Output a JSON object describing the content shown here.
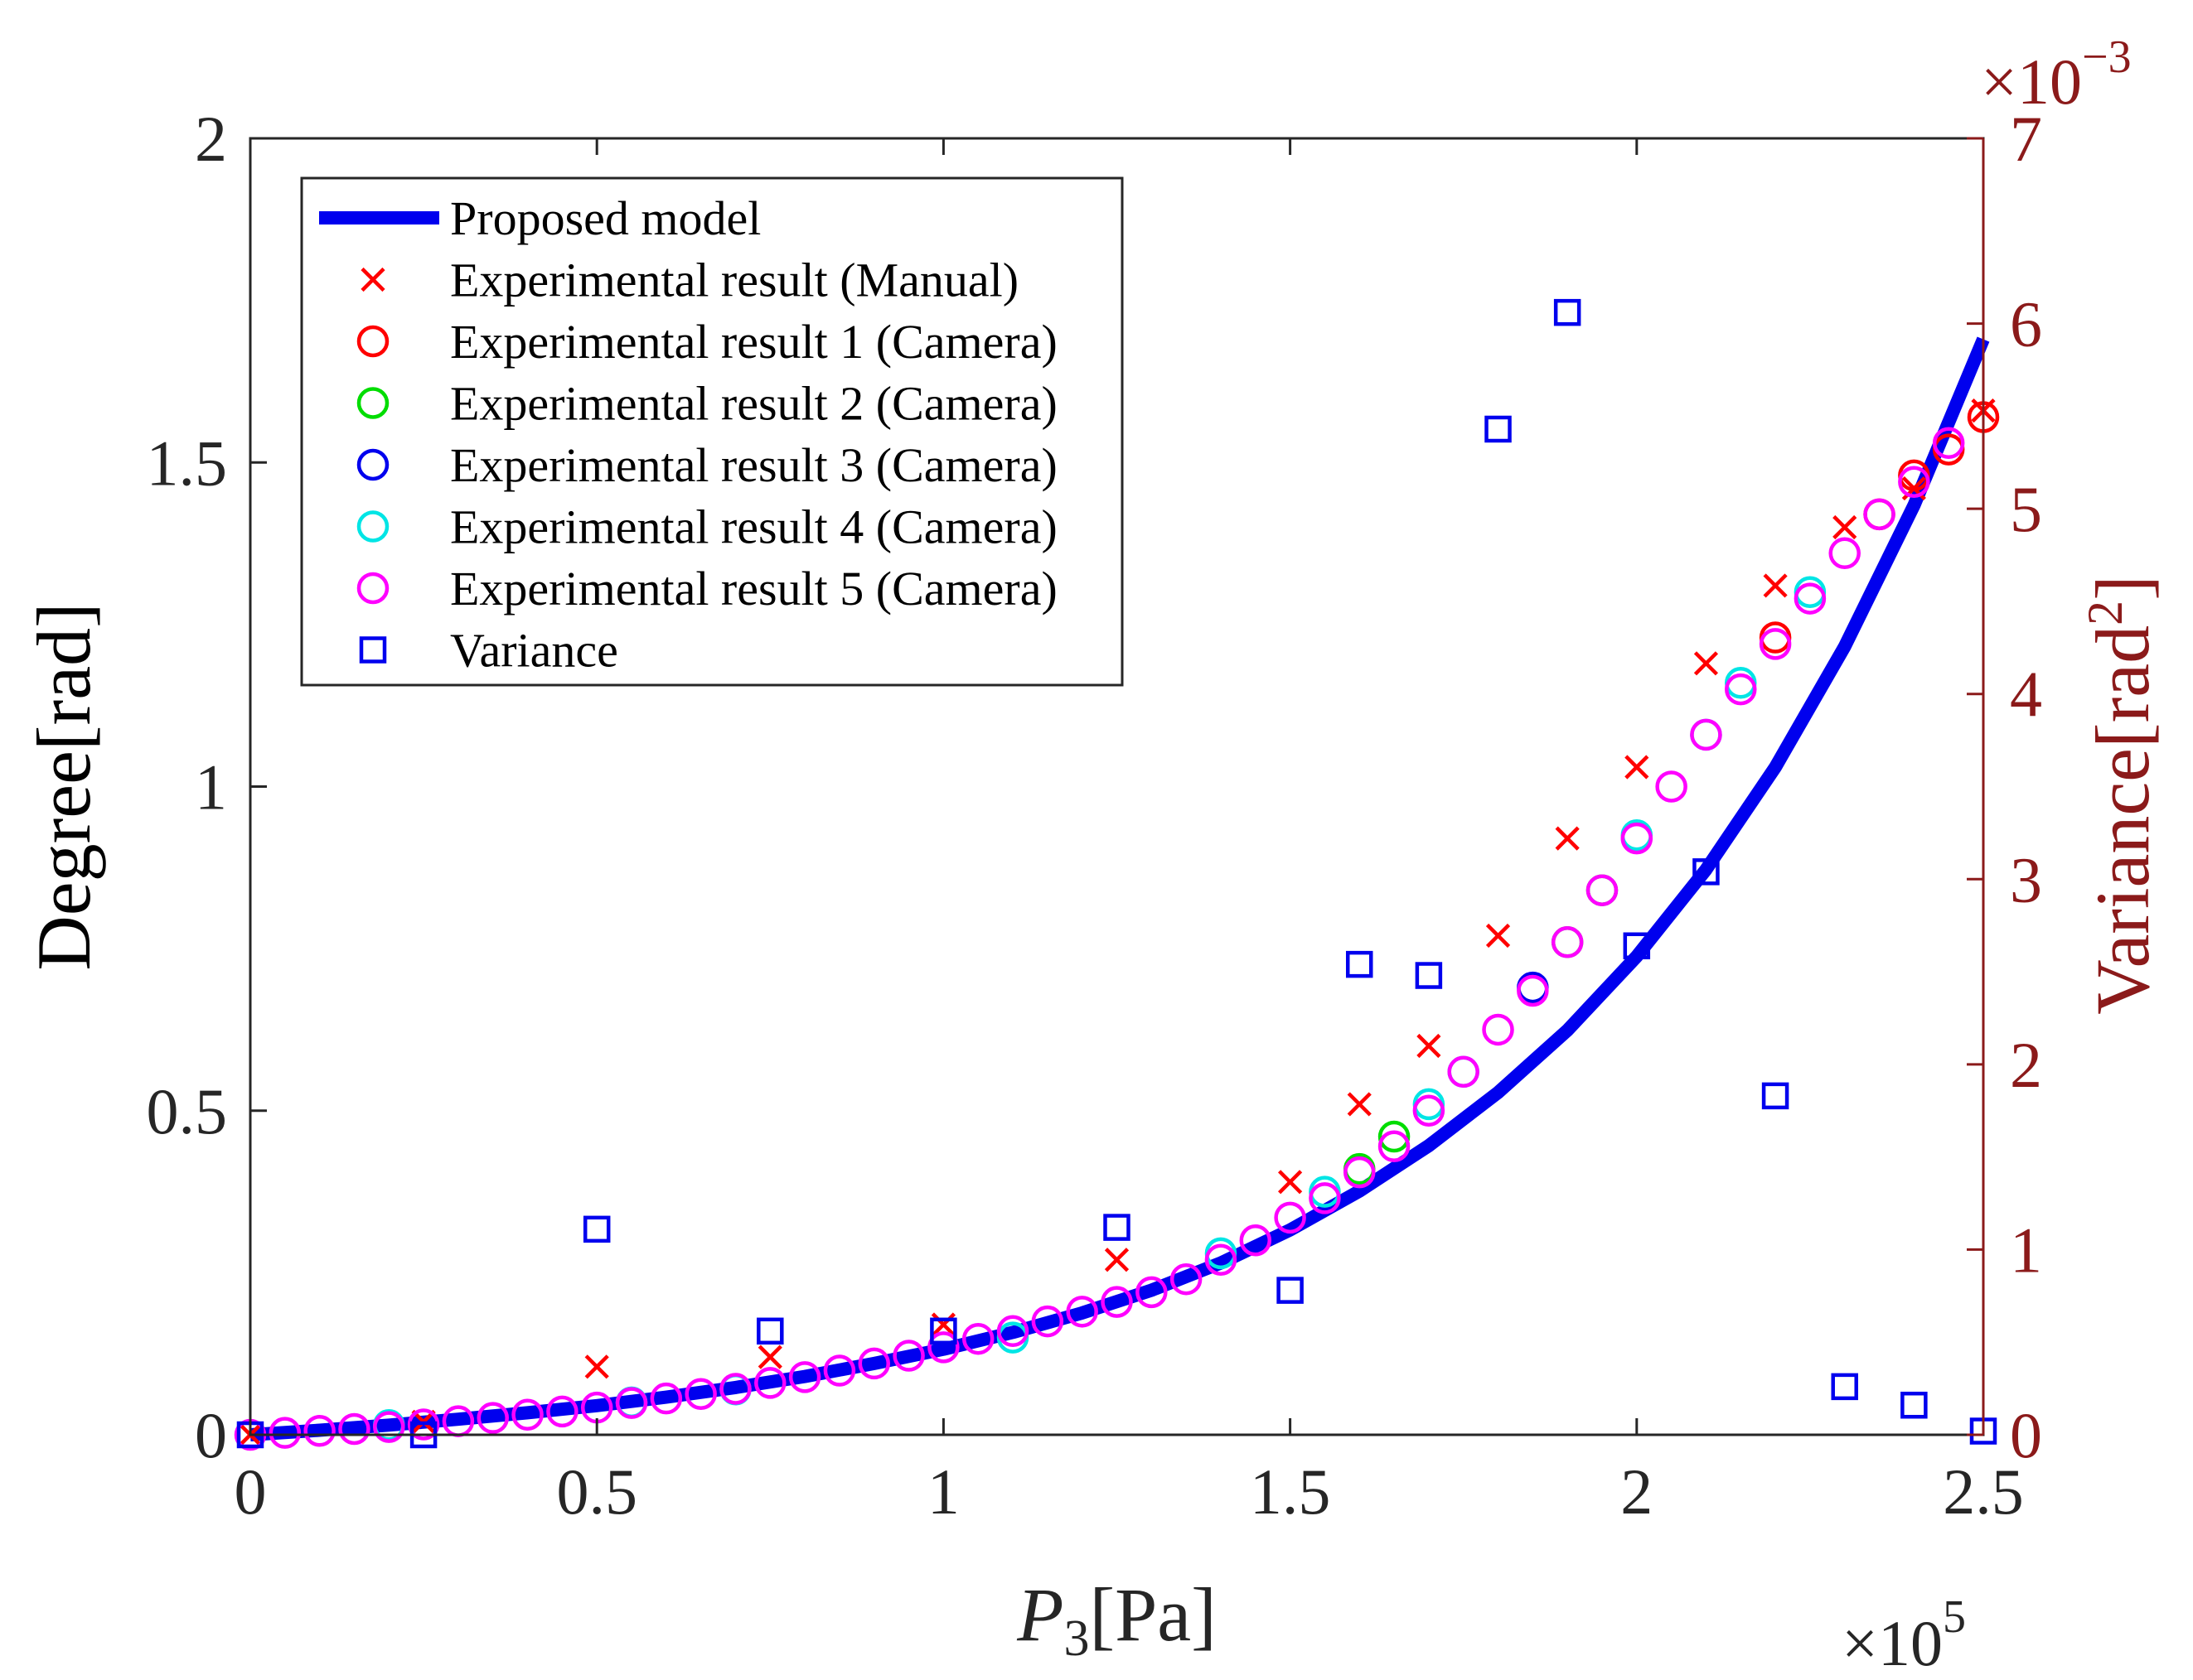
{
  "chart_data": {
    "type": "scatter",
    "title": "",
    "xlabel_italic": "P",
    "xlabel_sub": "3",
    "xlabel_unit": "[Pa]",
    "x_exponent_base": "×10",
    "x_exponent_power": "5",
    "ylabel_left": "Degree[rad]",
    "ylabel_right_prefix": "Variance[rad",
    "ylabel_right_sup": "2",
    "ylabel_right_suffix": "]",
    "y_right_exponent_base": "×10",
    "y_right_exponent_power": "-3",
    "xlim": [
      0,
      2.5
    ],
    "ylim_left": [
      0,
      2
    ],
    "ylim_right": [
      0,
      7
    ],
    "x_ticks": [
      "0",
      "0.5",
      "1",
      "1.5",
      "2",
      "2.5"
    ],
    "y_left_ticks": [
      "0",
      "0.5",
      "1",
      "1.5",
      "2"
    ],
    "y_right_ticks": [
      "0",
      "1",
      "2",
      "3",
      "4",
      "5",
      "6",
      "7"
    ],
    "grid": false,
    "legend_position": "top-left",
    "colors": {
      "model": "#0000ee",
      "manual": "#ff0000",
      "cam1": "#ff0000",
      "cam2": "#00dd00",
      "cam3": "#0000ee",
      "cam4": "#00e5e5",
      "cam5": "#ff00ff",
      "variance": "#0000ee",
      "right_axis": "#8b1a1a"
    },
    "series": [
      {
        "key": "model",
        "name": "Proposed model",
        "marker": "line",
        "x": [
          0,
          0.1,
          0.2,
          0.3,
          0.4,
          0.5,
          0.6,
          0.7,
          0.8,
          0.9,
          1.0,
          1.1,
          1.2,
          1.3,
          1.4,
          1.5,
          1.6,
          1.7,
          1.8,
          1.9,
          2.0,
          2.1,
          2.2,
          2.3,
          2.4,
          2.5
        ],
        "y": [
          0.0,
          0.007,
          0.015,
          0.024,
          0.034,
          0.045,
          0.058,
          0.073,
          0.09,
          0.11,
          0.132,
          0.158,
          0.188,
          0.223,
          0.265,
          0.316,
          0.376,
          0.446,
          0.528,
          0.624,
          0.738,
          0.872,
          1.03,
          1.216,
          1.434,
          1.69
        ]
      },
      {
        "key": "manual",
        "name": "Experimental result (Manual)",
        "marker": "x",
        "x": [
          0,
          0.25,
          0.5,
          0.75,
          1.0,
          1.25,
          1.5,
          1.6,
          1.7,
          1.8,
          1.9,
          2.0,
          2.1,
          2.2,
          2.3,
          2.4,
          2.5
        ],
        "y": [
          0.0,
          0.02,
          0.105,
          0.12,
          0.17,
          0.27,
          0.39,
          0.51,
          0.6,
          0.77,
          0.92,
          1.03,
          1.19,
          1.31,
          1.4,
          1.46,
          1.58
        ]
      },
      {
        "key": "cam1",
        "name": "Experimental result 1 (Camera)",
        "marker": "o",
        "x": [
          2.2,
          2.35,
          2.4,
          2.45,
          2.5
        ],
        "y": [
          1.23,
          1.42,
          1.48,
          1.52,
          1.57
        ]
      },
      {
        "key": "cam2",
        "name": "Experimental result 2 (Camera)",
        "marker": "o",
        "x": [
          1.6,
          1.65,
          1.9,
          1.95
        ],
        "y": [
          0.41,
          0.46,
          0.76,
          0.84
        ]
      },
      {
        "key": "cam3",
        "name": "Experimental result 3 (Camera)",
        "marker": "o",
        "x": [
          1.85
        ],
        "y": [
          0.69
        ]
      },
      {
        "key": "cam4",
        "name": "Experimental result 4 (Camera)",
        "marker": "o",
        "x": [
          0.2,
          0.55,
          0.7,
          1.1,
          1.4,
          1.55,
          1.7,
          1.75,
          2.0,
          2.1,
          2.15,
          2.25
        ],
        "y": [
          0.015,
          0.05,
          0.07,
          0.15,
          0.28,
          0.375,
          0.51,
          0.56,
          0.925,
          1.08,
          1.16,
          1.3
        ]
      },
      {
        "key": "cam5",
        "name": "Experimental result 5 (Camera)",
        "marker": "o",
        "x": [
          0,
          0.05,
          0.1,
          0.15,
          0.2,
          0.25,
          0.3,
          0.35,
          0.4,
          0.45,
          0.5,
          0.55,
          0.6,
          0.65,
          0.7,
          0.75,
          0.8,
          0.85,
          0.9,
          0.95,
          1.0,
          1.05,
          1.1,
          1.15,
          1.2,
          1.25,
          1.3,
          1.35,
          1.4,
          1.45,
          1.5,
          1.55,
          1.6,
          1.65,
          1.7,
          1.75,
          1.8,
          1.85,
          1.9,
          1.95,
          2.0,
          2.05,
          2.1,
          2.15,
          2.2,
          2.25,
          2.3,
          2.35,
          2.4,
          2.45
        ],
        "y": [
          0.0,
          0.003,
          0.006,
          0.009,
          0.012,
          0.016,
          0.021,
          0.026,
          0.031,
          0.036,
          0.042,
          0.049,
          0.056,
          0.063,
          0.071,
          0.08,
          0.089,
          0.099,
          0.11,
          0.122,
          0.135,
          0.148,
          0.16,
          0.175,
          0.19,
          0.205,
          0.22,
          0.24,
          0.27,
          0.3,
          0.335,
          0.365,
          0.405,
          0.445,
          0.5,
          0.56,
          0.625,
          0.685,
          0.76,
          0.84,
          0.92,
          1.0,
          1.08,
          1.15,
          1.22,
          1.29,
          1.36,
          1.42,
          1.47,
          1.53
        ]
      },
      {
        "key": "variance",
        "name": "Variance",
        "marker": "square",
        "axis": "right",
        "x": [
          0,
          0.25,
          0.5,
          0.75,
          1.0,
          1.25,
          1.5,
          1.6,
          1.7,
          1.8,
          1.9,
          2.0,
          2.1,
          2.2,
          2.3,
          2.4,
          2.5
        ],
        "y": [
          0.0,
          0.0,
          1.11,
          0.56,
          0.56,
          1.12,
          0.78,
          2.54,
          2.48,
          5.43,
          6.06,
          2.64,
          3.04,
          1.83,
          0.26,
          0.16,
          0.02
        ]
      }
    ]
  }
}
